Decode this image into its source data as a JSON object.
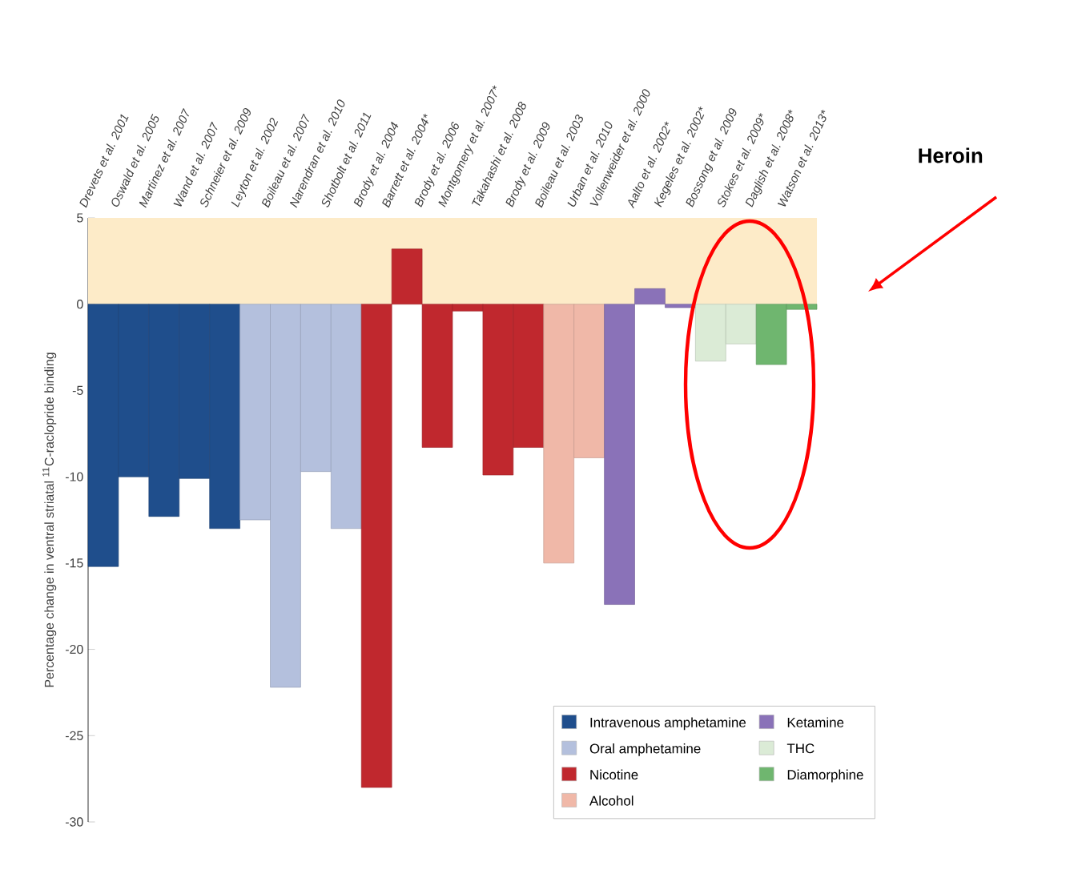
{
  "chart_data": {
    "type": "bar",
    "ylabel": "Percentage change in ventral striatal $^{11}$C-raclopride binding",
    "categories": [
      "Drevets et al. 2001",
      "Oswald et al. 2005",
      "Martinez et al. 2007",
      "Wand et al. 2007",
      "Schneier et al. 2009",
      "Leyton et al. 2002",
      "Boileau et al. 2007",
      "Narendran et al. 2010",
      "Shotbolt et al. 2011",
      "Brody et al. 2004",
      "Barrett et al. 2004*",
      "Brody et al. 2006",
      "Montgomery et al. 2007*",
      "Takahashi et al. 2008",
      "Brody et al. 2009",
      "Boileau et al. 2003",
      "Urban et al. 2010",
      "Vollenweider et al. 2000",
      "Aalto et al. 2002*",
      "Kegeles et al. 2002*",
      "Bossong et al. 2009",
      "Stokes et al. 2009*",
      "Daglish et al. 2008*",
      "Watson et al. 2013*"
    ],
    "series": [
      {
        "name": "Intravenous amphetamine",
        "color": "#1f4e8c",
        "values": [
          -15.2,
          -10,
          -12.3,
          -10.1,
          -13,
          null,
          null,
          null,
          null,
          null,
          null,
          null,
          null,
          null,
          null,
          null,
          null,
          null,
          null,
          null,
          null,
          null,
          null,
          null
        ]
      },
      {
        "name": "Oral amphetamine",
        "color": "#b4c0dd",
        "values": [
          null,
          null,
          null,
          null,
          null,
          -12.5,
          -22.2,
          -9.7,
          -13,
          null,
          null,
          null,
          null,
          null,
          null,
          null,
          null,
          null,
          null,
          null,
          null,
          null,
          null,
          null
        ]
      },
      {
        "name": "Nicotine",
        "color": "#c0282e",
        "values": [
          null,
          null,
          null,
          null,
          null,
          null,
          null,
          null,
          null,
          -28,
          3.2,
          -8.3,
          -0.4,
          -9.9,
          -8.3,
          null,
          null,
          null,
          null,
          null,
          null,
          null,
          null,
          null
        ]
      },
      {
        "name": "Alcohol",
        "color": "#f0b8a8",
        "values": [
          null,
          null,
          null,
          null,
          null,
          null,
          null,
          null,
          null,
          null,
          null,
          null,
          null,
          null,
          null,
          -15,
          -8.9,
          null,
          null,
          null,
          null,
          null,
          null,
          null
        ]
      },
      {
        "name": "Ketamine",
        "color": "#8a72b8",
        "values": [
          null,
          null,
          null,
          null,
          null,
          null,
          null,
          null,
          null,
          null,
          null,
          null,
          null,
          null,
          null,
          null,
          null,
          -17.4,
          0.9,
          -0.2,
          null,
          null,
          null,
          null
        ]
      },
      {
        "name": "THC",
        "color": "#dbebd6",
        "values": [
          null,
          null,
          null,
          null,
          null,
          null,
          null,
          null,
          null,
          null,
          null,
          null,
          null,
          null,
          null,
          null,
          null,
          null,
          null,
          null,
          -3.3,
          -2.3,
          null,
          null
        ]
      },
      {
        "name": "Diamorphine",
        "color": "#6fb66f",
        "values": [
          null,
          null,
          null,
          null,
          null,
          null,
          null,
          null,
          null,
          null,
          null,
          null,
          null,
          null,
          null,
          null,
          null,
          null,
          null,
          null,
          null,
          null,
          -3.5,
          -0.3
        ]
      }
    ],
    "ylim": [
      -30,
      5
    ],
    "yticks": [
      -30,
      -25,
      -20,
      -15,
      -10,
      -5,
      0,
      5
    ],
    "bands": [
      {
        "axis": "y",
        "from": 0,
        "to": 5,
        "color": "#fdebc8"
      }
    ],
    "legend": "bottom right",
    "annotations": [
      "Heroin"
    ]
  }
}
